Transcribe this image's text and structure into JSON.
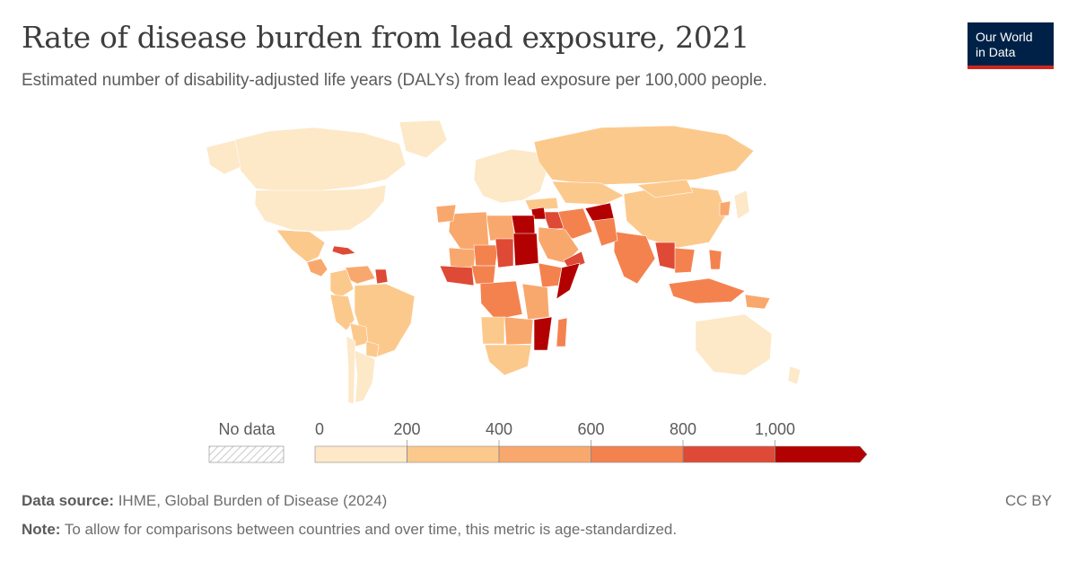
{
  "header": {
    "title": "Rate of disease burden from lead exposure, 2021",
    "subtitle": "Estimated number of disability-adjusted life years (DALYs) from lead exposure per 100,000 people."
  },
  "logo": {
    "line1": "Our World",
    "line2": "in Data",
    "bg_color": "#002147",
    "accent_color": "#ce261e"
  },
  "legend": {
    "no_data_label": "No data",
    "bins": [
      {
        "from": 0,
        "to": 200,
        "color": "#fde8c8"
      },
      {
        "from": 200,
        "to": 400,
        "color": "#fcc98c"
      },
      {
        "from": 400,
        "to": 600,
        "color": "#f9a86d"
      },
      {
        "from": 600,
        "to": 800,
        "color": "#f4824f"
      },
      {
        "from": 800,
        "to": 1000,
        "color": "#de4a35"
      },
      {
        "from": 1000,
        "to": null,
        "color": "#b30000"
      }
    ],
    "tick_labels": [
      "0",
      "200",
      "400",
      "600",
      "800",
      "1,000"
    ]
  },
  "map_regions": [
    {
      "name": "Canada",
      "bin": 0
    },
    {
      "name": "Alaska",
      "bin": 0
    },
    {
      "name": "Greenland",
      "bin": 0
    },
    {
      "name": "United States",
      "bin": 0
    },
    {
      "name": "Mexico",
      "bin": 1
    },
    {
      "name": "Central America",
      "bin": 2
    },
    {
      "name": "Caribbean",
      "bin": 4
    },
    {
      "name": "Venezuela",
      "bin": 2
    },
    {
      "name": "Guyana",
      "bin": 4
    },
    {
      "name": "Colombia",
      "bin": 1
    },
    {
      "name": "Brazil",
      "bin": 1
    },
    {
      "name": "Peru",
      "bin": 1
    },
    {
      "name": "Bolivia",
      "bin": 1
    },
    {
      "name": "Paraguay",
      "bin": 1
    },
    {
      "name": "Argentina",
      "bin": 0
    },
    {
      "name": "Chile",
      "bin": 0
    },
    {
      "name": "Europe",
      "bin": 0
    },
    {
      "name": "Russia",
      "bin": 1
    },
    {
      "name": "Kazakhstan",
      "bin": 1
    },
    {
      "name": "China",
      "bin": 1
    },
    {
      "name": "Mongolia",
      "bin": 1
    },
    {
      "name": "India",
      "bin": 3
    },
    {
      "name": "Pakistan",
      "bin": 3
    },
    {
      "name": "Afghanistan",
      "bin": 5
    },
    {
      "name": "Iran",
      "bin": 3
    },
    {
      "name": "Turkey",
      "bin": 1
    },
    {
      "name": "Iraq",
      "bin": 4
    },
    {
      "name": "Syria",
      "bin": 5
    },
    {
      "name": "Saudi Arabia",
      "bin": 2
    },
    {
      "name": "Yemen",
      "bin": 4
    },
    {
      "name": "Egypt",
      "bin": 5
    },
    {
      "name": "Libya",
      "bin": 2
    },
    {
      "name": "Algeria",
      "bin": 2
    },
    {
      "name": "Morocco",
      "bin": 2
    },
    {
      "name": "Mali",
      "bin": 2
    },
    {
      "name": "Niger",
      "bin": 3
    },
    {
      "name": "Chad",
      "bin": 4
    },
    {
      "name": "Sudan",
      "bin": 5
    },
    {
      "name": "Ethiopia",
      "bin": 3
    },
    {
      "name": "Somalia",
      "bin": 5
    },
    {
      "name": "Nigeria",
      "bin": 3
    },
    {
      "name": "West Africa coast",
      "bin": 4
    },
    {
      "name": "Congo Basin",
      "bin": 3
    },
    {
      "name": "Kenya & Tanzania",
      "bin": 2
    },
    {
      "name": "Mozambique",
      "bin": 5
    },
    {
      "name": "Angola",
      "bin": 1
    },
    {
      "name": "Zambia & Zimbabwe",
      "bin": 2
    },
    {
      "name": "Southern Africa",
      "bin": 1
    },
    {
      "name": "Madagascar",
      "bin": 3
    },
    {
      "name": "Southeast Asia",
      "bin": 3
    },
    {
      "name": "Myanmar & Laos",
      "bin": 4
    },
    {
      "name": "Indonesia",
      "bin": 3
    },
    {
      "name": "Philippines",
      "bin": 3
    },
    {
      "name": "Papua New Guinea",
      "bin": 2
    },
    {
      "name": "Japan",
      "bin": 0
    },
    {
      "name": "Korea",
      "bin": 2
    },
    {
      "name": "Australia",
      "bin": 0
    },
    {
      "name": "New Zealand",
      "bin": 0
    }
  ],
  "footer": {
    "source_label": "Data source:",
    "source_text": " IHME, Global Burden of Disease (2024)",
    "note_label": "Note:",
    "note_text": " To allow for comparisons between countries and over time, this metric is age-standardized.",
    "license": "CC BY"
  }
}
